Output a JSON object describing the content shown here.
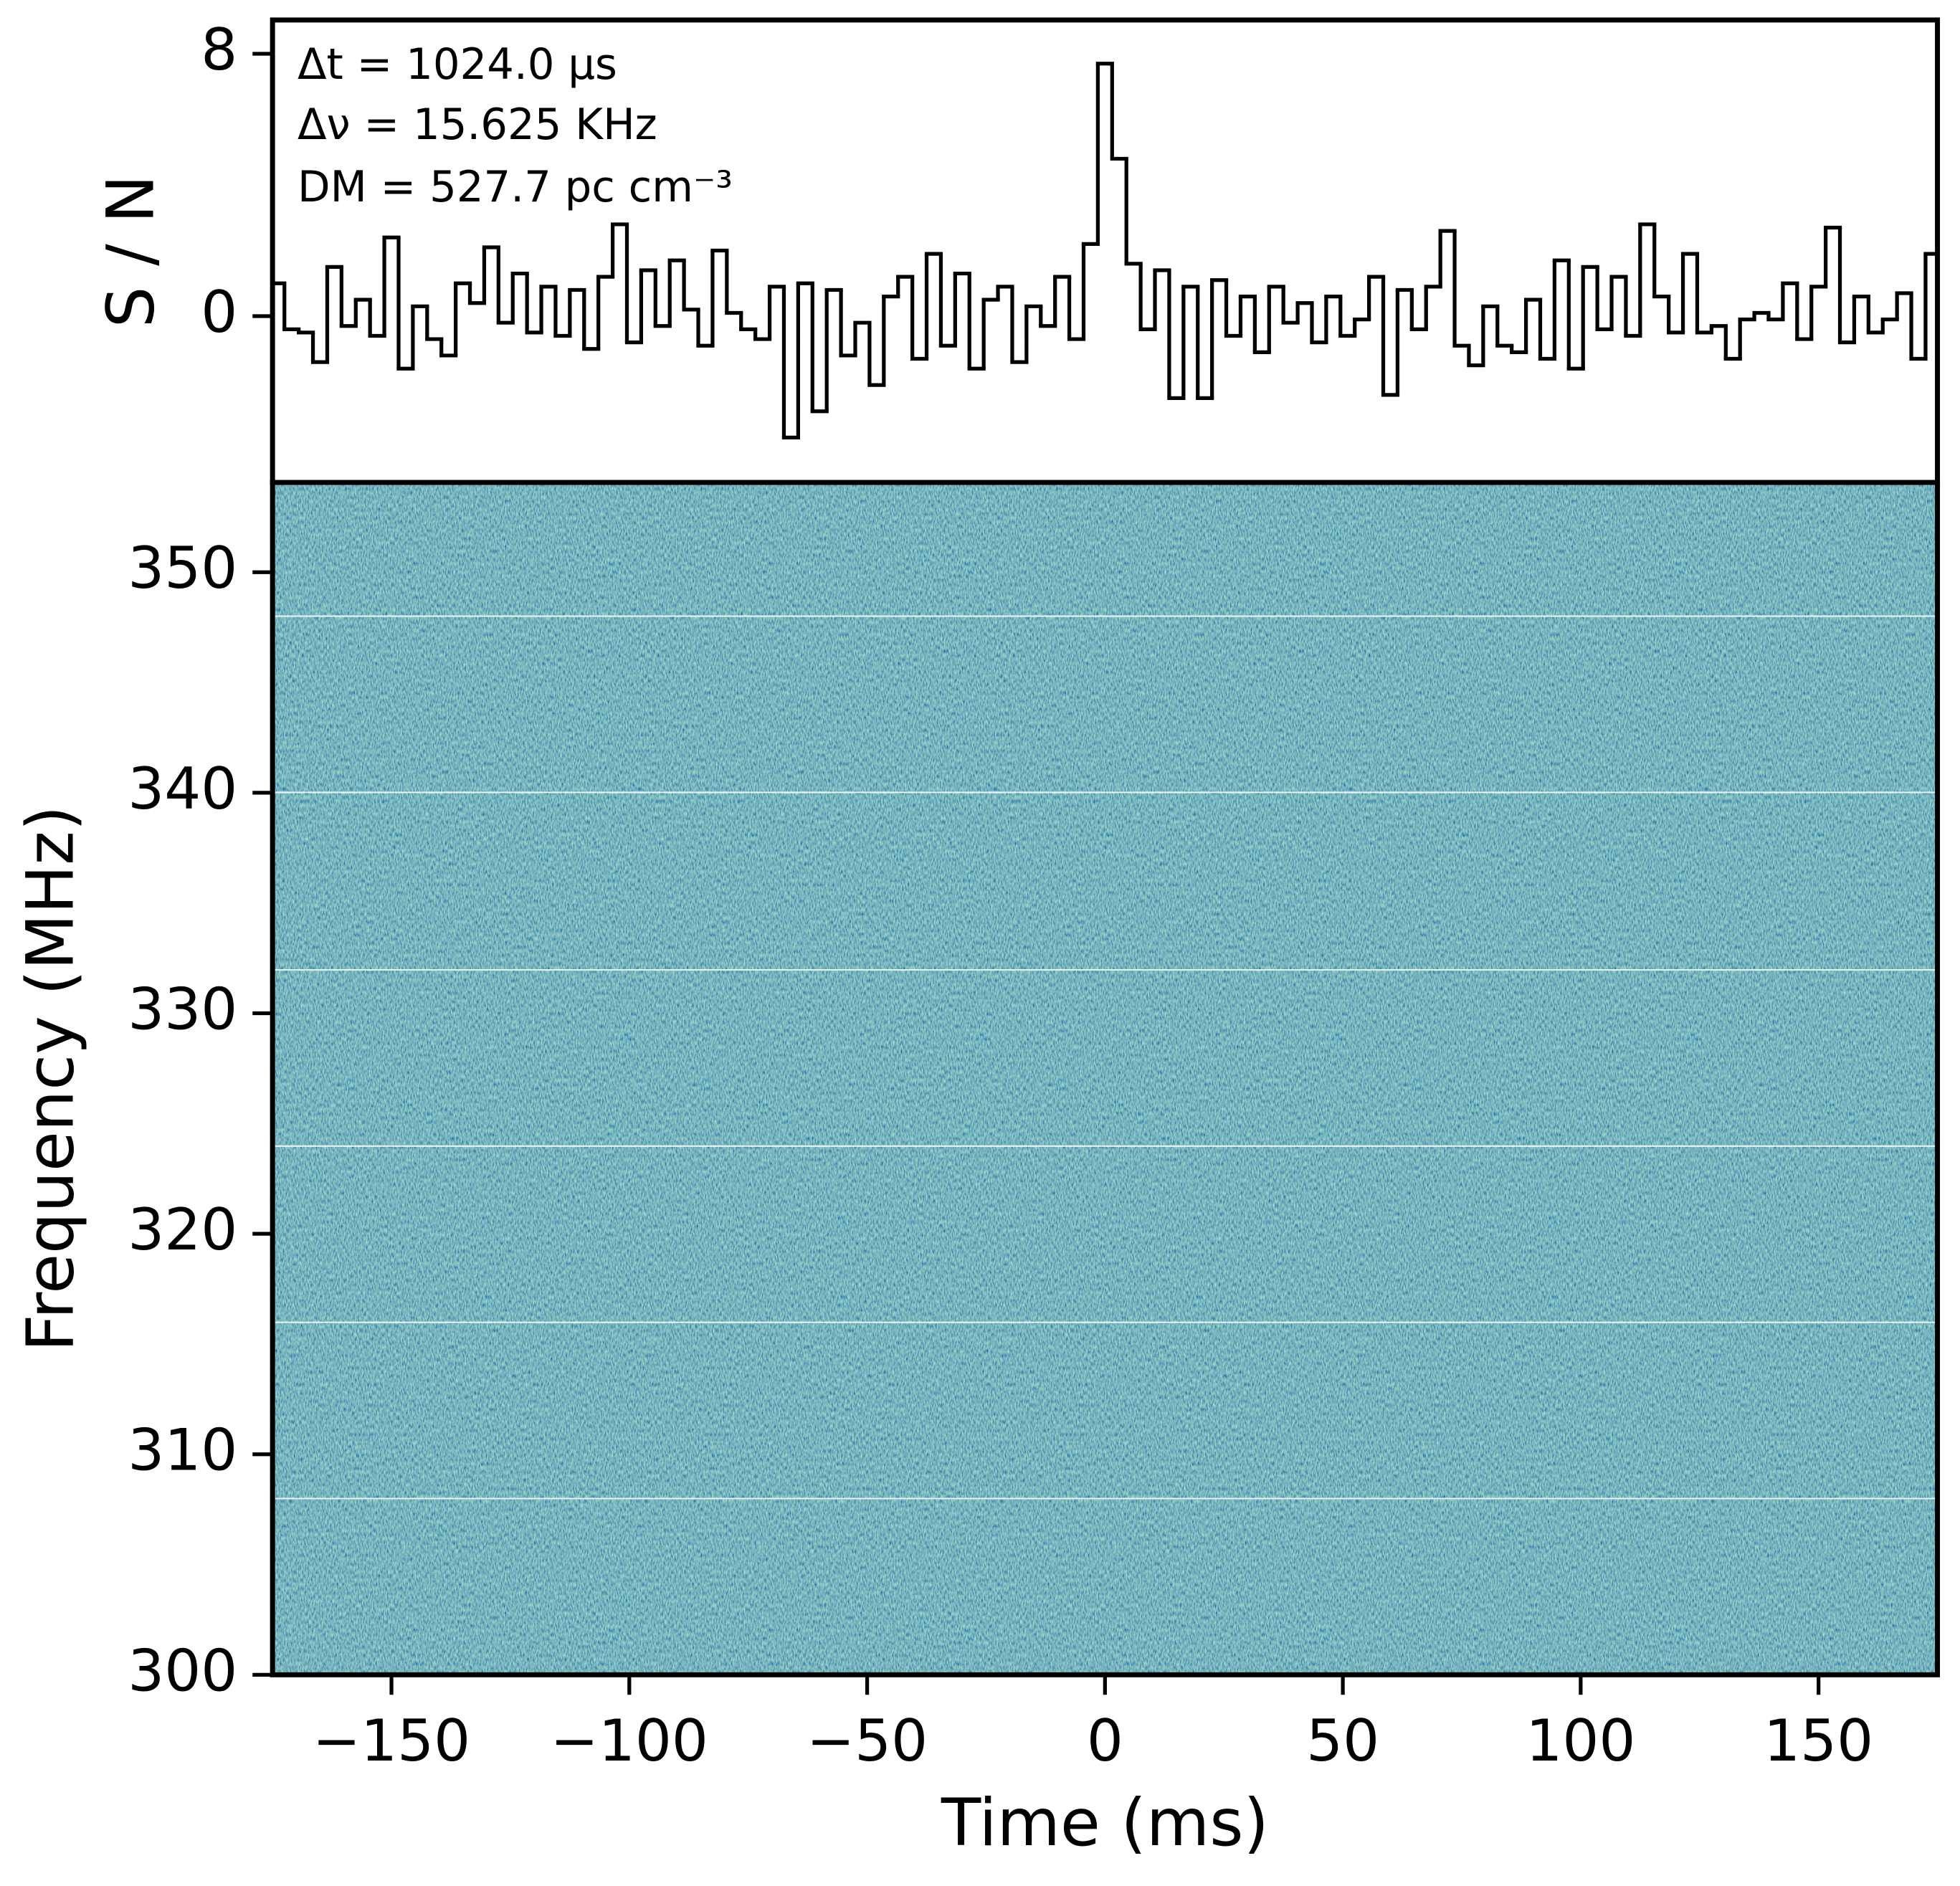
{
  "chart_data": [
    {
      "type": "line",
      "ylabel": "S / N",
      "color": "#000000",
      "annotations": [
        "Δt  = 1024.0 μs",
        "Δν  = 15.625 KHz",
        "DM = 527.7 pc cm⁻³"
      ],
      "x": [
        -174,
        -171,
        -168,
        -165,
        -162,
        -159,
        -156,
        -153,
        -150,
        -147,
        -144,
        -141,
        -138,
        -135,
        -132,
        -129,
        -126,
        -123,
        -120,
        -117,
        -114,
        -111,
        -108,
        -105,
        -102,
        -99,
        -96,
        -93,
        -90,
        -87,
        -84,
        -81,
        -78,
        -75,
        -72,
        -69,
        -66,
        -63,
        -60,
        -57,
        -54,
        -51,
        -48,
        -45,
        -42,
        -39,
        -36,
        -33,
        -30,
        -27,
        -24,
        -21,
        -18,
        -15,
        -12,
        -9,
        -6,
        -3,
        0,
        3,
        6,
        9,
        12,
        15,
        18,
        21,
        24,
        27,
        30,
        33,
        36,
        39,
        42,
        45,
        48,
        51,
        54,
        57,
        60,
        63,
        66,
        69,
        72,
        75,
        78,
        81,
        84,
        87,
        90,
        93,
        96,
        99,
        102,
        105,
        108,
        111,
        114,
        117,
        120,
        123,
        126,
        129,
        132,
        135,
        138,
        141,
        144,
        147,
        150,
        153,
        156,
        159,
        162,
        165,
        168,
        171,
        174
      ],
      "values": [
        1.0,
        -0.4,
        -0.5,
        -1.4,
        1.5,
        -0.3,
        0.5,
        -0.6,
        2.4,
        -1.6,
        0.3,
        -0.7,
        -1.2,
        1.0,
        0.4,
        2.1,
        -0.2,
        1.3,
        -0.5,
        0.9,
        -0.6,
        0.8,
        -1.0,
        1.2,
        2.8,
        -0.8,
        1.4,
        -0.3,
        1.7,
        0.2,
        -0.9,
        2.0,
        0.1,
        -0.4,
        -0.7,
        0.9,
        -3.7,
        1.0,
        -2.9,
        0.8,
        -1.2,
        -0.2,
        -2.1,
        0.6,
        1.2,
        -1.3,
        1.9,
        -0.9,
        1.3,
        -1.6,
        0.5,
        0.9,
        -1.4,
        0.3,
        -0.3,
        1.2,
        -0.7,
        2.2,
        7.7,
        4.8,
        1.6,
        -0.4,
        1.4,
        -2.5,
        0.9,
        -2.5,
        1.1,
        -0.6,
        0.6,
        -1.1,
        0.9,
        -0.2,
        0.4,
        -0.8,
        0.6,
        -0.6,
        -0.1,
        1.2,
        -2.4,
        0.8,
        -0.4,
        0.9,
        2.6,
        -0.9,
        -1.5,
        0.3,
        -0.9,
        -1.1,
        0.5,
        -1.3,
        1.7,
        -1.6,
        1.5,
        -0.4,
        1.2,
        -0.6,
        2.8,
        0.6,
        -0.5,
        1.9,
        -0.5,
        -0.3,
        -1.3,
        -0.1,
        0.1,
        -0.1,
        1.0,
        -0.7,
        0.9,
        2.7,
        -0.8,
        0.6,
        -0.5,
        -0.1,
        0.7,
        -1.3,
        1.9
      ],
      "xlim": [
        -175,
        175
      ],
      "ylim": [
        -5.07,
        9.03
      ],
      "yticks": [
        0,
        8
      ]
    },
    {
      "type": "heatmap",
      "xlabel": "Time (ms)",
      "ylabel": "Frequency (MHz)",
      "xlim": [
        -175,
        175
      ],
      "xticks": [
        {
          "value": -150,
          "label": "−150"
        },
        {
          "value": -100,
          "label": "−100"
        },
        {
          "value": -50,
          "label": "−50"
        },
        0,
        50,
        100,
        150
      ],
      "ylim": [
        300,
        354.07
      ],
      "yticks": [
        300,
        310,
        320,
        330,
        340,
        350
      ]
    }
  ]
}
